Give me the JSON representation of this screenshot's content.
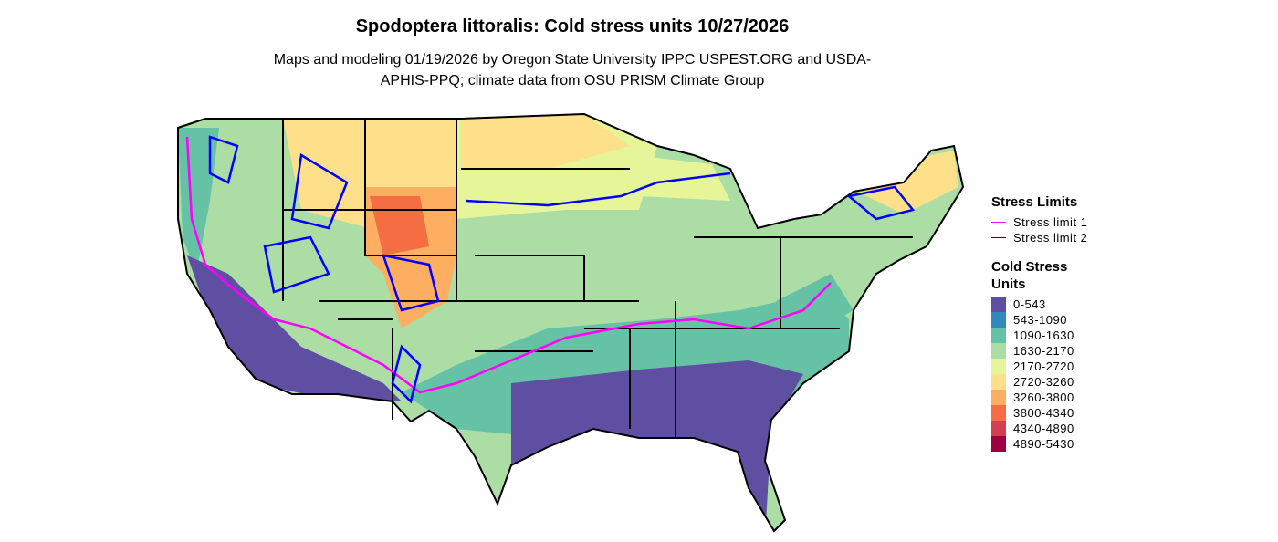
{
  "header": {
    "title": "Spodoptera littoralis: Cold stress units 10/27/2026",
    "subtitle": "Maps and modeling 01/19/2026 by Oregon State University IPPC USPEST.ORG and USDA-APHIS-PPQ; climate data from OSU PRISM Climate Group"
  },
  "stress_limits": {
    "title": "Stress Limits",
    "items": [
      {
        "label": "Stress limit 1",
        "color": "#ff00ff"
      },
      {
        "label": "Stress limit 2",
        "color": "#0000ff"
      }
    ]
  },
  "cold_stress_units": {
    "title": "Cold Stress Units",
    "items": [
      {
        "label": "0-543",
        "color": "#5e4fa2"
      },
      {
        "label": "543-1090",
        "color": "#3288bd"
      },
      {
        "label": "1090-1630",
        "color": "#66c2a5"
      },
      {
        "label": "1630-2170",
        "color": "#abdda4"
      },
      {
        "label": "2170-2720",
        "color": "#e6f598"
      },
      {
        "label": "2720-3260",
        "color": "#fee08b"
      },
      {
        "label": "3260-3800",
        "color": "#fdae61"
      },
      {
        "label": "3800-4340",
        "color": "#f46d43"
      },
      {
        "label": "4340-4890",
        "color": "#d53e4f"
      },
      {
        "label": "4890-5430",
        "color": "#9e0142"
      }
    ]
  }
}
